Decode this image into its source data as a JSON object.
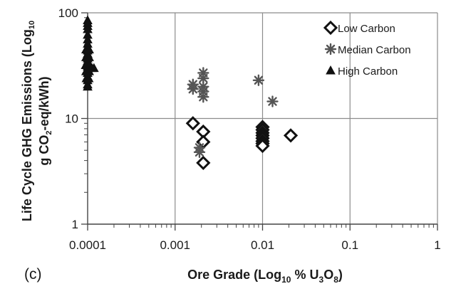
{
  "chart_data": {
    "type": "scatter",
    "panel_label": "(c)",
    "xlabel": {
      "prefix": "Ore Grade (Log",
      "sub1": "10",
      "mid1": " % U",
      "sub2": "3",
      "mid2": "O",
      "sub3": "8",
      "suffix": ")"
    },
    "ylabel": {
      "line1_prefix": "Life Cycle GHG Emissions (Log",
      "line1_sub": "10",
      "line2_prefix": "g CO",
      "line2_sub": "2",
      "line2_suffix": "-eq/kWh)"
    },
    "x_scale": "log",
    "y_scale": "log",
    "xlim": [
      0.0001,
      1
    ],
    "ylim": [
      1,
      100
    ],
    "x_ticks": [
      {
        "value": 0.0001,
        "label": "0.0001"
      },
      {
        "value": 0.001,
        "label": "0.001"
      },
      {
        "value": 0.01,
        "label": "0.01"
      },
      {
        "value": 0.1,
        "label": "0.1"
      },
      {
        "value": 1,
        "label": "1"
      }
    ],
    "y_ticks": [
      {
        "value": 1,
        "label": "1"
      },
      {
        "value": 10,
        "label": "10"
      },
      {
        "value": 100,
        "label": "100"
      }
    ],
    "grid": "major",
    "legend_position": "top-right",
    "series": [
      {
        "name": "Low Carbon",
        "marker": "diamond",
        "points": [
          [
            0.0016,
            9.0
          ],
          [
            0.0021,
            7.5
          ],
          [
            0.0021,
            6.0
          ],
          [
            0.0021,
            3.8
          ],
          [
            0.01,
            8.3
          ],
          [
            0.01,
            7.8
          ],
          [
            0.01,
            7.3
          ],
          [
            0.01,
            6.9
          ],
          [
            0.01,
            6.5
          ],
          [
            0.01,
            6.1
          ],
          [
            0.01,
            5.8
          ],
          [
            0.01,
            5.5
          ],
          [
            0.021,
            6.9
          ]
        ]
      },
      {
        "name": "Median Carbon",
        "marker": "asterisk",
        "points": [
          [
            0.0016,
            21
          ],
          [
            0.0016,
            19
          ],
          [
            0.0021,
            27
          ],
          [
            0.0021,
            24
          ],
          [
            0.0021,
            20
          ],
          [
            0.0021,
            18
          ],
          [
            0.0021,
            16
          ],
          [
            0.0019,
            5.3
          ],
          [
            0.0019,
            4.8
          ],
          [
            0.009,
            23
          ],
          [
            0.013,
            14.5
          ]
        ]
      },
      {
        "name": "High Carbon",
        "marker": "triangle",
        "points": [
          [
            0.0001,
            85
          ],
          [
            0.0001,
            80
          ],
          [
            0.0001,
            75
          ],
          [
            0.0001,
            70
          ],
          [
            0.0001,
            62
          ],
          [
            0.0001,
            56
          ],
          [
            0.0001,
            51
          ],
          [
            0.0001,
            47
          ],
          [
            0.0001,
            44
          ],
          [
            0.0001,
            41
          ],
          [
            0.0001,
            39
          ],
          [
            0.0001,
            37
          ],
          [
            0.0001,
            35
          ],
          [
            0.0001,
            33
          ],
          [
            0.0001,
            31
          ],
          [
            0.0001,
            29
          ],
          [
            0.0001,
            27
          ],
          [
            0.0001,
            25
          ],
          [
            0.0001,
            23
          ],
          [
            0.0001,
            21
          ],
          [
            0.0001,
            20
          ],
          [
            9.6e-05,
            45
          ],
          [
            0.000104,
            45
          ],
          [
            9.6e-05,
            38
          ],
          [
            0.000104,
            38
          ],
          [
            9.5e-05,
            32
          ],
          [
            0.000105,
            32
          ],
          [
            9.6e-05,
            28
          ],
          [
            0.000104,
            28
          ],
          [
            9.7e-05,
            24
          ],
          [
            0.000103,
            24
          ],
          [
            0.000112,
            30
          ],
          [
            0.000118,
            30
          ]
        ]
      }
    ]
  }
}
